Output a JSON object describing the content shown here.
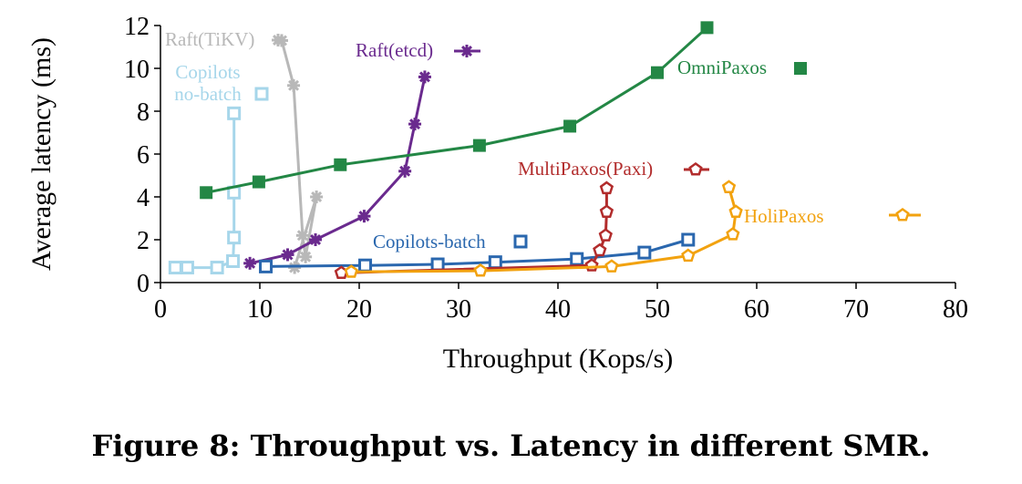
{
  "caption": "Figure 8: Throughput vs. Latency in different SMR.",
  "chart_data": {
    "type": "line",
    "xlabel": "Throughput (Kops/s)",
    "ylabel": "Average latency (ms)",
    "xlim": [
      0,
      80
    ],
    "ylim": [
      0,
      12
    ],
    "xticks": [
      "0",
      "10",
      "20",
      "30",
      "40",
      "50",
      "60",
      "70",
      "80"
    ],
    "yticks": [
      "0",
      "2",
      "4",
      "6",
      "8",
      "10",
      "12"
    ],
    "grid": false,
    "legend": "inline labels",
    "series": [
      {
        "name": "Raft(TiKV)",
        "color": "#b8b8b8",
        "marker": "asterisk",
        "x": [
          12.2,
          13.4,
          14.3,
          14.6,
          15.7,
          13.5
        ],
        "y": [
          11.3,
          9.2,
          2.2,
          1.2,
          4.0,
          0.7
        ]
      },
      {
        "name": "Copilots\nno-batch",
        "color": "#a6d6ea",
        "marker": "square-open",
        "x": [
          1.5,
          2.7,
          5.7,
          7.3,
          7.4,
          7.4,
          7.4
        ],
        "y": [
          0.7,
          0.7,
          0.7,
          1.0,
          2.1,
          4.2,
          7.9
        ]
      },
      {
        "name": "Raft(etcd)",
        "color": "#6a2a8e",
        "marker": "asterisk",
        "x": [
          9.0,
          12.8,
          15.6,
          20.5,
          24.6,
          25.6,
          26.6
        ],
        "y": [
          0.9,
          1.3,
          2.0,
          3.1,
          5.2,
          7.4,
          9.6
        ]
      },
      {
        "name": "OmniPaxos",
        "color": "#238745",
        "marker": "square-filled",
        "x": [
          4.6,
          9.9,
          18.1,
          32.1,
          41.2,
          50.0,
          55.0
        ],
        "y": [
          4.2,
          4.7,
          5.5,
          6.4,
          7.3,
          9.8,
          11.9
        ]
      },
      {
        "name": "Copilots-batch",
        "color": "#2a67ae",
        "marker": "square-open",
        "x": [
          10.6,
          20.6,
          27.9,
          33.7,
          41.9,
          48.7,
          53.1
        ],
        "y": [
          0.75,
          0.8,
          0.85,
          0.95,
          1.1,
          1.4,
          2.0
        ]
      },
      {
        "name": "MultiPaxos(Paxi)",
        "color": "#b22c2c",
        "marker": "pentagon-open",
        "x": [
          18.2,
          43.4,
          44.2,
          44.8,
          44.9,
          44.9
        ],
        "y": [
          0.45,
          0.8,
          1.5,
          2.2,
          3.3,
          4.4
        ]
      },
      {
        "name": "HoliPaxos",
        "color": "#f2a20f",
        "marker": "pentagon-open",
        "x": [
          19.2,
          32.2,
          45.4,
          53.1,
          57.6,
          57.9,
          57.2
        ],
        "y": [
          0.5,
          0.55,
          0.75,
          1.25,
          2.25,
          3.3,
          4.45
        ]
      }
    ]
  }
}
